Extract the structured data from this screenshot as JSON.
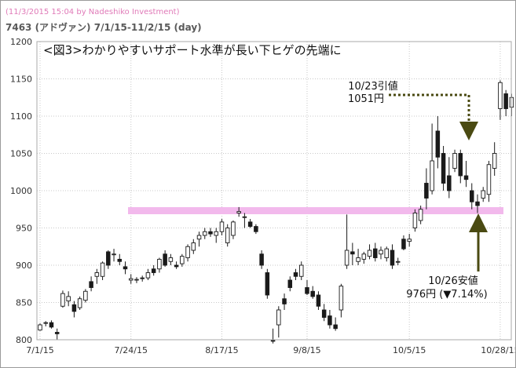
{
  "header": {
    "meta": "(11/3/2015 15:04 by Nadeshiko Investment)",
    "title": "7463 (アドヴァン) 7/1/15-11/2/15 (day)"
  },
  "chart_data": {
    "type": "candlestick",
    "title": "<図3>わかりやすいサポート水準が長い下ヒゲの先端に",
    "ylim": [
      800,
      1200
    ],
    "yticks": [
      800,
      850,
      900,
      950,
      1000,
      1050,
      1100,
      1150,
      1200
    ],
    "xticks": [
      "7/1/15",
      "7/24/15",
      "8/17/15",
      "9/8/15",
      "10/5/15",
      "10/28/15"
    ],
    "xtick_index": [
      0,
      16,
      32,
      47,
      65,
      81
    ],
    "grid": true,
    "candles": [
      [
        813,
        822,
        812,
        820
      ],
      [
        822,
        825,
        818,
        823
      ],
      [
        823,
        826,
        815,
        817
      ],
      [
        810,
        815,
        800,
        808
      ],
      [
        845,
        866,
        843,
        862
      ],
      [
        852,
        865,
        845,
        858
      ],
      [
        847,
        852,
        830,
        838
      ],
      [
        843,
        858,
        840,
        855
      ],
      [
        853,
        868,
        850,
        865
      ],
      [
        878,
        885,
        865,
        870
      ],
      [
        885,
        895,
        875,
        890
      ],
      [
        885,
        905,
        880,
        903
      ],
      [
        918,
        920,
        895,
        900
      ],
      [
        915,
        922,
        905,
        915
      ],
      [
        908,
        915,
        900,
        905
      ],
      [
        898,
        905,
        888,
        895
      ],
      [
        880,
        888,
        875,
        882
      ],
      [
        880,
        884,
        876,
        881
      ],
      [
        883,
        886,
        878,
        882
      ],
      [
        883,
        895,
        880,
        890
      ],
      [
        895,
        900,
        886,
        890
      ],
      [
        895,
        910,
        890,
        908
      ],
      [
        915,
        920,
        898,
        900
      ],
      [
        905,
        915,
        900,
        910
      ],
      [
        900,
        905,
        895,
        898
      ],
      [
        902,
        915,
        898,
        912
      ],
      [
        910,
        928,
        905,
        925
      ],
      [
        920,
        935,
        915,
        930
      ],
      [
        935,
        945,
        925,
        940
      ],
      [
        940,
        950,
        935,
        945
      ],
      [
        945,
        950,
        938,
        942
      ],
      [
        940,
        950,
        930,
        945
      ],
      [
        945,
        962,
        940,
        958
      ],
      [
        930,
        955,
        925,
        950
      ],
      [
        940,
        960,
        935,
        958
      ],
      [
        970,
        978,
        965,
        972
      ],
      [
        965,
        970,
        950,
        965
      ],
      [
        958,
        962,
        950,
        952
      ],
      [
        952,
        955,
        942,
        945
      ],
      [
        915,
        920,
        895,
        900
      ],
      [
        890,
        895,
        855,
        860
      ],
      [
        800,
        815,
        795,
        798
      ],
      [
        820,
        845,
        803,
        840
      ],
      [
        855,
        862,
        840,
        848
      ],
      [
        880,
        885,
        865,
        870
      ],
      [
        890,
        895,
        880,
        885
      ],
      [
        885,
        905,
        880,
        900
      ],
      [
        870,
        880,
        860,
        862
      ],
      [
        865,
        872,
        855,
        858
      ],
      [
        860,
        865,
        840,
        845
      ],
      [
        840,
        848,
        825,
        830
      ],
      [
        832,
        840,
        815,
        820
      ],
      [
        820,
        830,
        812,
        815
      ],
      [
        840,
        875,
        830,
        872
      ],
      [
        900,
        968,
        895,
        920
      ],
      [
        918,
        930,
        900,
        915
      ],
      [
        905,
        922,
        900,
        910
      ],
      [
        908,
        918,
        902,
        915
      ],
      [
        912,
        928,
        908,
        920
      ],
      [
        922,
        930,
        905,
        910
      ],
      [
        915,
        925,
        908,
        920
      ],
      [
        910,
        925,
        905,
        922
      ],
      [
        920,
        928,
        895,
        900
      ],
      [
        905,
        910,
        900,
        905
      ],
      [
        935,
        940,
        920,
        922
      ],
      [
        932,
        942,
        925,
        935
      ],
      [
        950,
        975,
        945,
        970
      ],
      [
        960,
        980,
        955,
        975
      ],
      [
        1010,
        1030,
        975,
        990
      ],
      [
        1000,
        1090,
        995,
        1040
      ],
      [
        1080,
        1100,
        1030,
        1045
      ],
      [
        1050,
        1060,
        1000,
        1010
      ],
      [
        1020,
        1045,
        990,
        1000
      ],
      [
        1030,
        1055,
        1025,
        1050
      ],
      [
        1050,
        1055,
        1010,
        1020
      ],
      [
        1020,
        1040,
        1005,
        1015
      ],
      [
        1000,
        1010,
        975,
        985
      ],
      [
        985,
        995,
        970,
        980
      ],
      [
        990,
        1005,
        985,
        1000
      ],
      [
        995,
        1040,
        985,
        1035
      ],
      [
        1030,
        1065,
        1020,
        1050
      ],
      [
        1110,
        1148,
        1095,
        1145
      ],
      [
        1130,
        1135,
        1100,
        1110
      ],
      [
        1112,
        1130,
        1100,
        1125
      ]
    ],
    "support_level": 976,
    "annotations": [
      {
        "label": "10/23引値",
        "value": "1051円"
      },
      {
        "label": "10/26安値",
        "value": "976円 (▼7.14%)"
      }
    ]
  }
}
